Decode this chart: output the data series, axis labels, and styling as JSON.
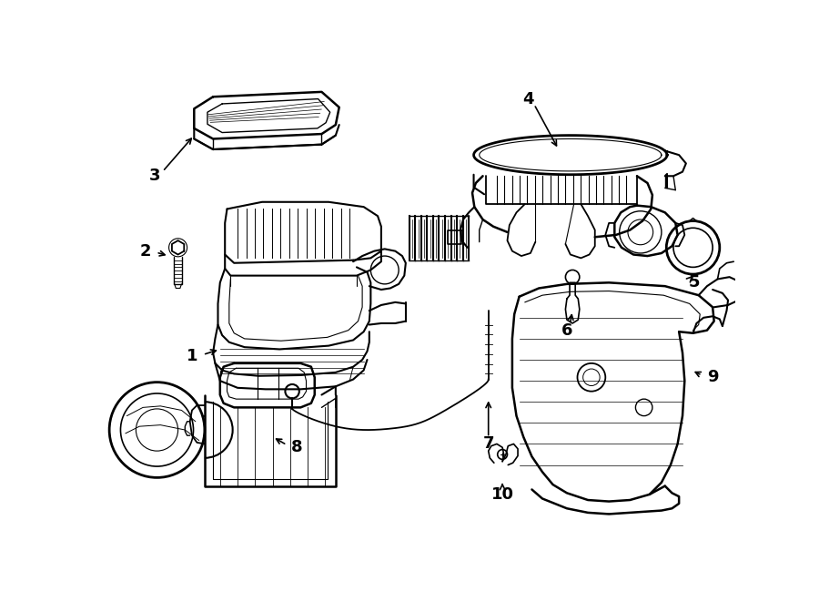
{
  "bg_color": "#ffffff",
  "line_color": "#000000",
  "text_color": "#000000",
  "fig_width": 9.0,
  "fig_height": 6.61,
  "dpi": 100
}
